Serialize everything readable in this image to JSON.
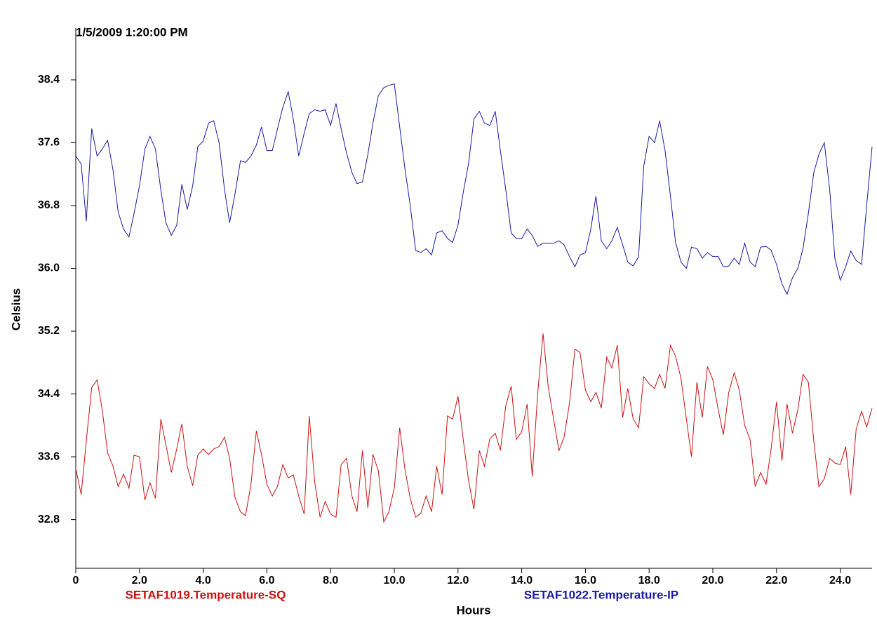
{
  "chart_data": {
    "type": "line",
    "title": "1/5/2009 1:20:00 PM",
    "x_label": "Hours",
    "y_label": "Celsius",
    "xlim": [
      0,
      25
    ],
    "ylim": [
      32.18,
      39.06
    ],
    "xticks": [
      0,
      {
        "value": 2,
        "label": "2.0"
      },
      {
        "value": 4,
        "label": "4.0"
      },
      {
        "value": 6,
        "label": "6.0"
      },
      {
        "value": 8,
        "label": "8.0"
      },
      {
        "value": 10,
        "label": "10.0"
      },
      {
        "value": 12,
        "label": "12.0"
      },
      {
        "value": 14,
        "label": "14.0"
      },
      {
        "value": 16,
        "label": "16.0"
      },
      {
        "value": 18,
        "label": "18.0"
      },
      {
        "value": 20,
        "label": "20.0"
      },
      {
        "value": 22,
        "label": "22.0"
      },
      {
        "value": 24,
        "label": "24.0"
      }
    ],
    "yticks": [
      32.8,
      33.6,
      34.4,
      35.2,
      {
        "value": 36,
        "label": "36.0"
      },
      36.8,
      37.6,
      38.4
    ],
    "x": [
      0,
      0.17,
      0.33,
      0.5,
      0.67,
      0.83,
      1,
      1.17,
      1.33,
      1.5,
      1.67,
      1.83,
      2,
      2.17,
      2.33,
      2.5,
      2.67,
      2.83,
      3,
      3.17,
      3.33,
      3.5,
      3.67,
      3.83,
      4,
      4.17,
      4.33,
      4.5,
      4.67,
      4.83,
      5,
      5.17,
      5.33,
      5.5,
      5.67,
      5.83,
      6,
      6.17,
      6.33,
      6.5,
      6.67,
      6.83,
      7,
      7.17,
      7.33,
      7.5,
      7.67,
      7.83,
      8,
      8.17,
      8.33,
      8.5,
      8.67,
      8.83,
      9,
      9.17,
      9.33,
      9.5,
      9.67,
      9.83,
      10,
      10.17,
      10.33,
      10.5,
      10.67,
      10.83,
      11,
      11.17,
      11.33,
      11.5,
      11.67,
      11.83,
      12,
      12.17,
      12.33,
      12.5,
      12.67,
      12.83,
      13,
      13.17,
      13.33,
      13.5,
      13.67,
      13.83,
      14,
      14.17,
      14.33,
      14.5,
      14.67,
      14.83,
      15,
      15.17,
      15.33,
      15.5,
      15.67,
      15.83,
      16,
      16.17,
      16.33,
      16.5,
      16.67,
      16.83,
      17,
      17.17,
      17.33,
      17.5,
      17.67,
      17.83,
      18,
      18.17,
      18.33,
      18.5,
      18.67,
      18.83,
      19,
      19.17,
      19.33,
      19.5,
      19.67,
      19.83,
      20,
      20.17,
      20.33,
      20.5,
      20.67,
      20.83,
      21,
      21.17,
      21.33,
      21.5,
      21.67,
      21.83,
      22,
      22.17,
      22.33,
      22.5,
      22.67,
      22.83,
      23,
      23.17,
      23.33,
      23.5,
      23.67,
      23.83,
      24,
      24.17,
      24.33,
      24.5,
      24.67,
      24.83,
      25
    ],
    "series": [
      {
        "name": "SETAF1019.Temperature-SQ",
        "color": "#cc1111",
        "values": [
          33.45,
          33.12,
          33.8,
          34.48,
          34.58,
          34.2,
          33.65,
          33.48,
          33.22,
          33.38,
          33.2,
          33.62,
          33.6,
          33.05,
          33.27,
          33.07,
          34.08,
          33.75,
          33.4,
          33.7,
          34.02,
          33.48,
          33.23,
          33.62,
          33.7,
          33.63,
          33.7,
          33.73,
          33.85,
          33.58,
          33.08,
          32.9,
          32.85,
          33.25,
          33.93,
          33.63,
          33.25,
          33.1,
          33.22,
          33.5,
          33.33,
          33.37,
          33.1,
          32.87,
          34.12,
          33.28,
          32.83,
          33.03,
          32.87,
          32.83,
          33.5,
          33.58,
          33.1,
          32.9,
          33.68,
          32.95,
          33.63,
          33.42,
          32.77,
          32.9,
          33.2,
          33.97,
          33.45,
          33.07,
          32.83,
          32.88,
          33.1,
          32.9,
          33.48,
          33.12,
          34.12,
          34.08,
          34.37,
          33.8,
          33.3,
          32.93,
          33.68,
          33.48,
          33.83,
          33.9,
          33.68,
          34.25,
          34.5,
          33.82,
          33.92,
          34.27,
          33.35,
          34.4,
          35.17,
          34.5,
          34.08,
          33.68,
          33.85,
          34.28,
          34.97,
          34.93,
          34.45,
          34.3,
          34.42,
          34.22,
          34.87,
          34.73,
          35.02,
          34.1,
          34.47,
          34.08,
          33.97,
          34.62,
          34.53,
          34.47,
          34.65,
          34.47,
          35.02,
          34.88,
          34.6,
          34.08,
          33.6,
          34.55,
          34.1,
          34.75,
          34.58,
          34.2,
          33.88,
          34.42,
          34.67,
          34.45,
          34.0,
          33.82,
          33.22,
          33.4,
          33.25,
          33.7,
          34.3,
          33.55,
          34.27,
          33.9,
          34.2,
          34.65,
          34.55,
          33.8,
          33.22,
          33.32,
          33.58,
          33.52,
          33.5,
          33.73,
          33.12,
          33.95,
          34.18,
          33.98,
          34.22
        ]
      },
      {
        "name": "SETAF1022.Temperature-IP",
        "color": "#1a1aa6",
        "values": [
          37.43,
          37.33,
          36.6,
          37.78,
          37.43,
          37.52,
          37.63,
          37.25,
          36.72,
          36.5,
          36.4,
          36.7,
          37.05,
          37.52,
          37.68,
          37.52,
          37.0,
          36.58,
          36.42,
          36.55,
          37.07,
          36.75,
          37.05,
          37.55,
          37.62,
          37.85,
          37.88,
          37.6,
          37.0,
          36.58,
          36.95,
          37.37,
          37.35,
          37.43,
          37.57,
          37.8,
          37.5,
          37.5,
          37.77,
          38.05,
          38.25,
          37.9,
          37.43,
          37.72,
          37.97,
          38.02,
          38.0,
          38.02,
          37.82,
          38.1,
          37.78,
          37.47,
          37.22,
          37.08,
          37.1,
          37.45,
          37.85,
          38.2,
          38.3,
          38.33,
          38.35,
          37.8,
          37.28,
          36.8,
          36.23,
          36.2,
          36.25,
          36.17,
          36.45,
          36.48,
          36.38,
          36.33,
          36.55,
          36.98,
          37.33,
          37.9,
          38.0,
          37.85,
          37.82,
          38.0,
          37.5,
          37.0,
          36.45,
          36.38,
          36.38,
          36.5,
          36.42,
          36.28,
          36.32,
          36.32,
          36.32,
          36.35,
          36.3,
          36.15,
          36.02,
          36.17,
          36.2,
          36.5,
          36.92,
          36.35,
          36.25,
          36.35,
          36.52,
          36.3,
          36.08,
          36.03,
          36.15,
          37.3,
          37.68,
          37.6,
          37.88,
          37.5,
          36.92,
          36.33,
          36.08,
          36.0,
          36.27,
          36.25,
          36.13,
          36.2,
          36.15,
          36.15,
          36.02,
          36.03,
          36.13,
          36.05,
          36.32,
          36.08,
          36.02,
          36.27,
          36.28,
          36.23,
          36.05,
          35.8,
          35.67,
          35.88,
          36.0,
          36.25,
          36.7,
          37.22,
          37.45,
          37.6,
          37.0,
          36.13,
          35.85,
          36.02,
          36.22,
          36.1,
          36.05,
          36.8,
          37.55
        ]
      }
    ]
  }
}
